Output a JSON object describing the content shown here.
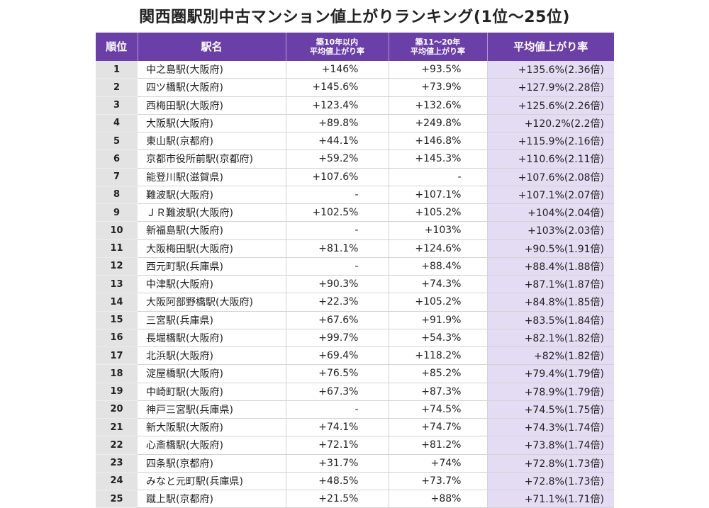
{
  "title": "関西圏駅別中古マンション値上がりランキング(1位～25位)",
  "chart_data": {
    "type": "table",
    "title": "関西圏駅別中古マンション値上がりランキング(1位～25位)",
    "columns": {
      "rank": "順位",
      "station": "駅名",
      "age_10_line1": "築10年以内",
      "age_10_line2": "平均値上がり率",
      "age_20_line1": "築11～20年",
      "age_20_line2": "平均値上がり率",
      "avg": "平均値上がり率"
    },
    "rows": [
      {
        "rank": "1",
        "station": "中之島駅(大阪府)",
        "age10": "+146%",
        "age20": "+93.5%",
        "avg": "+135.6%(2.36倍)"
      },
      {
        "rank": "2",
        "station": "四ツ橋駅(大阪府)",
        "age10": "+145.6%",
        "age20": "+73.9%",
        "avg": "+127.9%(2.28倍)"
      },
      {
        "rank": "3",
        "station": "西梅田駅(大阪府)",
        "age10": "+123.4%",
        "age20": "+132.6%",
        "avg": "+125.6%(2.26倍)"
      },
      {
        "rank": "4",
        "station": "大阪駅(大阪府)",
        "age10": "+89.8%",
        "age20": "+249.8%",
        "avg": "+120.2%(2.2倍)"
      },
      {
        "rank": "5",
        "station": "東山駅(京都府)",
        "age10": "+44.1%",
        "age20": "+146.8%",
        "avg": "+115.9%(2.16倍)"
      },
      {
        "rank": "6",
        "station": "京都市役所前駅(京都府)",
        "age10": "+59.2%",
        "age20": "+145.3%",
        "avg": "+110.6%(2.11倍)"
      },
      {
        "rank": "7",
        "station": "能登川駅(滋賀県)",
        "age10": "+107.6%",
        "age20": "-",
        "avg": "+107.6%(2.08倍)"
      },
      {
        "rank": "8",
        "station": "難波駅(大阪府)",
        "age10": "-",
        "age20": "+107.1%",
        "avg": "+107.1%(2.07倍)"
      },
      {
        "rank": "9",
        "station": "ＪＲ難波駅(大阪府)",
        "age10": "+102.5%",
        "age20": "+105.2%",
        "avg": "+104%(2.04倍)"
      },
      {
        "rank": "10",
        "station": "新福島駅(大阪府)",
        "age10": "-",
        "age20": "+103%",
        "avg": "+103%(2.03倍)"
      },
      {
        "rank": "11",
        "station": "大阪梅田駅(大阪府)",
        "age10": "+81.1%",
        "age20": "+124.6%",
        "avg": "+90.5%(1.91倍)"
      },
      {
        "rank": "12",
        "station": "西元町駅(兵庫県)",
        "age10": "-",
        "age20": "+88.4%",
        "avg": "+88.4%(1.88倍)"
      },
      {
        "rank": "13",
        "station": "中津駅(大阪府)",
        "age10": "+90.3%",
        "age20": "+74.3%",
        "avg": "+87.1%(1.87倍)"
      },
      {
        "rank": "14",
        "station": "大阪阿部野橋駅(大阪府)",
        "age10": "+22.3%",
        "age20": "+105.2%",
        "avg": "+84.8%(1.85倍)"
      },
      {
        "rank": "15",
        "station": "三宮駅(兵庫県)",
        "age10": "+67.6%",
        "age20": "+91.9%",
        "avg": "+83.5%(1.84倍)"
      },
      {
        "rank": "16",
        "station": "長堀橋駅(大阪府)",
        "age10": "+99.7%",
        "age20": "+54.3%",
        "avg": "+82.1%(1.82倍)"
      },
      {
        "rank": "17",
        "station": "北浜駅(大阪府)",
        "age10": "+69.4%",
        "age20": "+118.2%",
        "avg": "+82%(1.82倍)"
      },
      {
        "rank": "18",
        "station": "淀屋橋駅(大阪府)",
        "age10": "+76.5%",
        "age20": "+85.2%",
        "avg": "+79.4%(1.79倍)"
      },
      {
        "rank": "19",
        "station": "中崎町駅(大阪府)",
        "age10": "+67.3%",
        "age20": "+87.3%",
        "avg": "+78.9%(1.79倍)"
      },
      {
        "rank": "20",
        "station": "神戸三宮駅(兵庫県)",
        "age10": "-",
        "age20": "+74.5%",
        "avg": "+74.5%(1.75倍)"
      },
      {
        "rank": "21",
        "station": "新大阪駅(大阪府)",
        "age10": "+74.1%",
        "age20": "+74.7%",
        "avg": "+74.3%(1.74倍)"
      },
      {
        "rank": "22",
        "station": "心斎橋駅(大阪府)",
        "age10": "+72.1%",
        "age20": "+81.2%",
        "avg": "+73.8%(1.74倍)"
      },
      {
        "rank": "23",
        "station": "四条駅(京都府)",
        "age10": "+31.7%",
        "age20": "+74%",
        "avg": "+72.8%(1.73倍)"
      },
      {
        "rank": "24",
        "station": "みなと元町駅(兵庫県)",
        "age10": "+48.5%",
        "age20": "+73.7%",
        "avg": "+72.8%(1.73倍)"
      },
      {
        "rank": "25",
        "station": "蹴上駅(京都府)",
        "age10": "+21.5%",
        "age20": "+88%",
        "avg": "+71.1%(1.71倍)"
      }
    ],
    "colors": {
      "header_bg": "#6a40a8",
      "header_text": "#ffffff",
      "rank_bg": "#e3e3e3",
      "avg_bg": "#e4dcf2"
    }
  }
}
